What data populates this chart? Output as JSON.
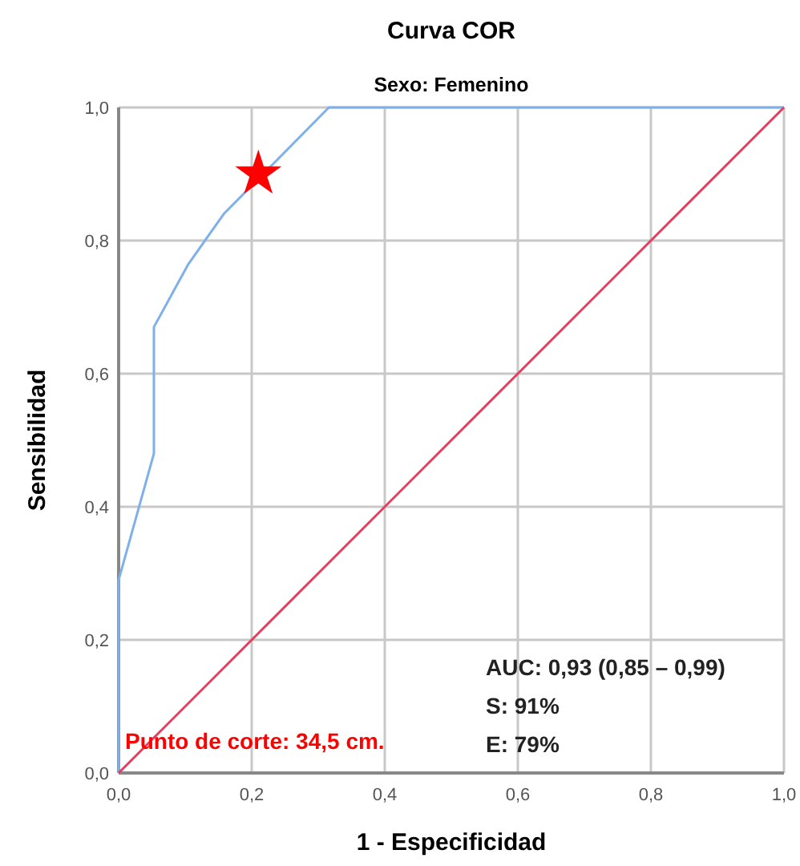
{
  "chart_data": {
    "type": "line",
    "title": "Curva COR",
    "subtitle": "Sexo: Femenino",
    "xlabel": "1 - Especificidad",
    "ylabel": "Sensibilidad",
    "xlim": [
      0,
      1
    ],
    "ylim": [
      0,
      1
    ],
    "xticks": [
      {
        "value": 0,
        "label": "0,0"
      },
      {
        "value": 0.2,
        "label": "0,2"
      },
      {
        "value": 0.4,
        "label": "0,4"
      },
      {
        "value": 0.6,
        "label": "0,6"
      },
      {
        "value": 0.8,
        "label": "0,8"
      },
      {
        "value": 1,
        "label": "1,0"
      }
    ],
    "yticks": [
      {
        "value": 0,
        "label": "0,0"
      },
      {
        "value": 0.2,
        "label": "0,2"
      },
      {
        "value": 0.4,
        "label": "0,4"
      },
      {
        "value": 0.6,
        "label": "0,6"
      },
      {
        "value": 0.8,
        "label": "0,8"
      },
      {
        "value": 1,
        "label": "1,0"
      }
    ],
    "grid": true,
    "marker": "none",
    "series": [
      {
        "color": "#7eb0ea",
        "x": [
          0,
          0,
          0.053,
          0.053,
          0.105,
          0.158,
          0.316,
          1
        ],
        "values": [
          0,
          0.29,
          0.48,
          0.67,
          0.765,
          0.84,
          1,
          1
        ]
      },
      {
        "color": "#e0405e",
        "x": [
          0,
          1
        ],
        "values": [
          0,
          1
        ]
      },
      {
        "type": "scatter",
        "marker": "star",
        "color": "#ff0000",
        "x": [
          0.21
        ],
        "values": [
          0.9
        ]
      }
    ],
    "annotations": [
      "Punto de corte: 34,5 cm.",
      "AUC: 0,93 (0,85 – 0,99)",
      "S: 91%",
      "E: 79%"
    ]
  }
}
